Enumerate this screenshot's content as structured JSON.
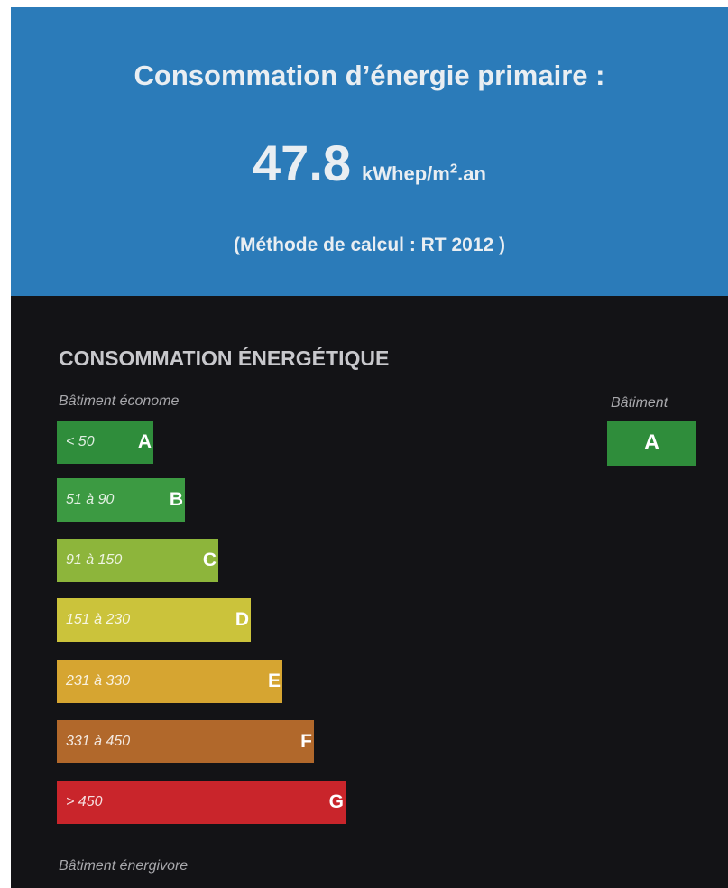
{
  "header": {
    "title": "Consommation d’énergie primaire :",
    "value": "47.8",
    "unit_base": "kWhep/m",
    "unit_sup": "2",
    "unit_tail": ".an",
    "method": "(Méthode de calcul : RT 2012 )"
  },
  "section": {
    "title": "CONSOMMATION ÉNERGÉTIQUE",
    "top_label": "Bâtiment économe",
    "bottom_label": "Bâtiment énergivore",
    "building_label": "Bâtiment",
    "building_class": "A",
    "classes": [
      {
        "range": "< 50",
        "letter": "A"
      },
      {
        "range": "51 à 90",
        "letter": "B"
      },
      {
        "range": "91 à 150",
        "letter": "C"
      },
      {
        "range": "151 à 230",
        "letter": "D"
      },
      {
        "range": "231 à 330",
        "letter": "E"
      },
      {
        "range": "331 à 450",
        "letter": "F"
      },
      {
        "range": "> 450",
        "letter": "G"
      }
    ]
  }
}
